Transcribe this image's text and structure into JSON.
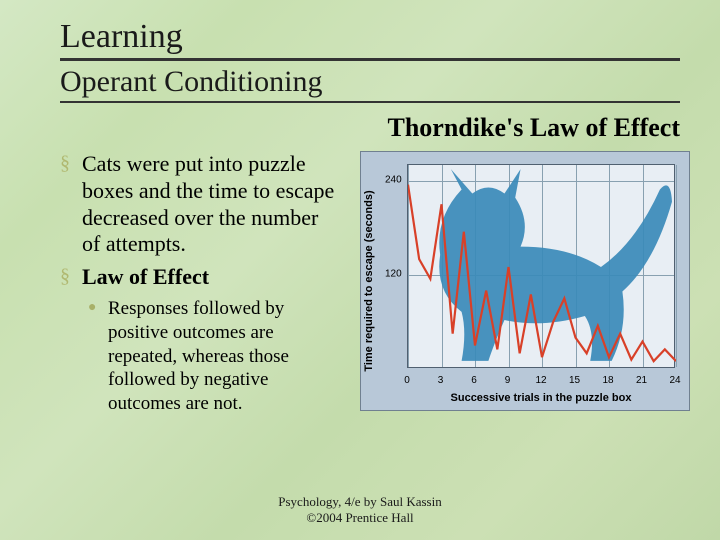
{
  "title1": "Learning",
  "title2": "Operant Conditioning",
  "heading_right": "Thorndike's Law of Effect",
  "bullets": [
    {
      "text": "Cats were put into puzzle boxes and the time to escape decreased over the number of attempts.",
      "bold": false
    },
    {
      "text": "Law of Effect",
      "bold": true
    }
  ],
  "sub_bullet": "Responses followed by positive outcomes are repeated, whereas those followed by negative outcomes are not.",
  "footer_line1": "Psychology, 4/e by Saul Kassin",
  "footer_line2": "©2004 Prentice Hall",
  "chart": {
    "type": "line",
    "background_color": "#b8c8d8",
    "plot_bg": "#e8eef4",
    "grid_color": "#88a0b0",
    "line_color": "#d84028",
    "cat_color": "#3a8ab8",
    "xlabel": "Successive trials in the puzzle box",
    "ylabel": "Time required to escape (seconds)",
    "xticks": [
      0,
      3,
      6,
      9,
      12,
      15,
      18,
      21,
      24
    ],
    "yticks": [
      120,
      240
    ],
    "xlim": [
      0,
      24
    ],
    "ylim": [
      0,
      260
    ],
    "values": [
      235,
      140,
      115,
      210,
      45,
      175,
      30,
      100,
      25,
      130,
      20,
      95,
      15,
      60,
      90,
      40,
      20,
      55,
      15,
      45,
      12,
      35,
      10,
      25,
      10
    ]
  }
}
